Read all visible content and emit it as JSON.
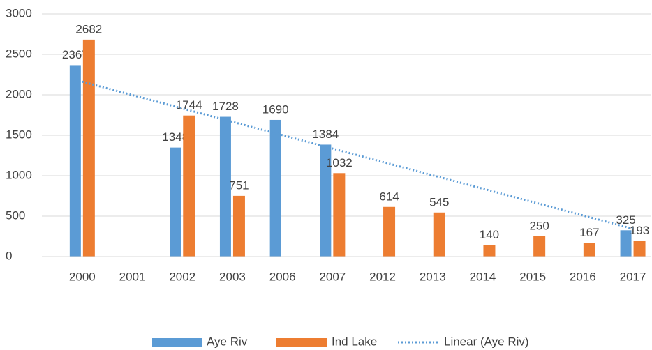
{
  "chart_data": {
    "type": "bar",
    "categories": [
      "2000",
      "2001",
      "2002",
      "2003",
      "2006",
      "2007",
      "2012",
      "2013",
      "2014",
      "2015",
      "2016",
      "2017"
    ],
    "series": [
      {
        "name": "Aye Riv",
        "color": "#5b9bd5",
        "values": [
          2367,
          null,
          1348,
          1728,
          1690,
          1384,
          null,
          null,
          null,
          null,
          null,
          325
        ]
      },
      {
        "name": "Ind Lake",
        "color": "#ed7d31",
        "values": [
          2682,
          null,
          1744,
          751,
          null,
          1032,
          614,
          545,
          140,
          250,
          167,
          193
        ]
      }
    ],
    "trendline": {
      "name": "Linear (Aye Riv)",
      "color": "#5b9bd5",
      "values": [
        2162,
        344
      ]
    },
    "ylim": [
      0,
      3000
    ],
    "yticks": [
      0,
      500,
      1000,
      1500,
      2000,
      2500,
      3000
    ],
    "grid": true,
    "legend": "bottom"
  }
}
